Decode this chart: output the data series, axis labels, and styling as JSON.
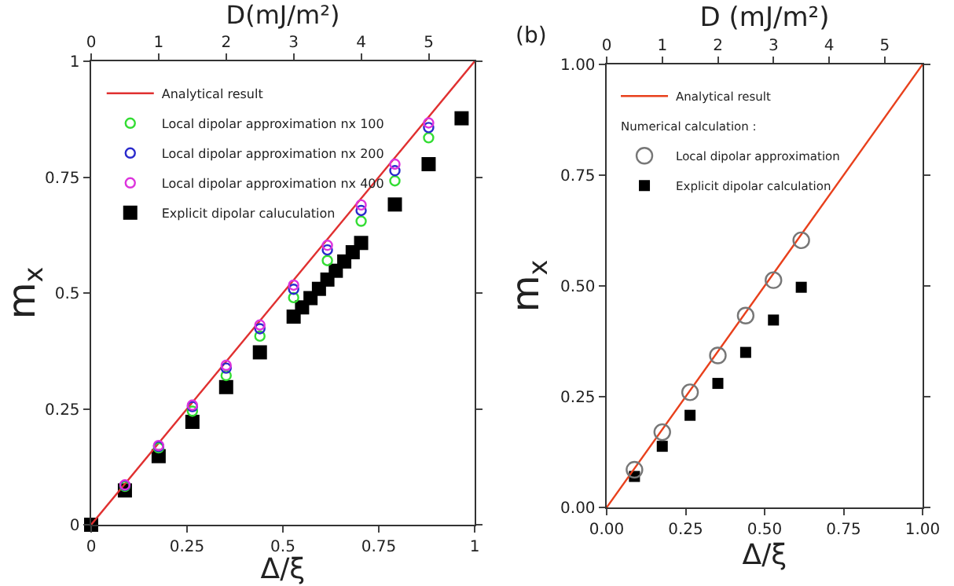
{
  "chart_data": [
    {
      "type": "scatter",
      "xlabel": "Δ/ξ",
      "ylabel": "m$_{x}$",
      "x2label": "D(mJ/m²)",
      "xlim": [
        0,
        1
      ],
      "ylim": [
        0,
        1
      ],
      "xticks": [
        0,
        0.25,
        0.5,
        0.75,
        1
      ],
      "yticks": [
        0,
        0.25,
        0.5,
        0.75,
        1
      ],
      "x2lim": [
        0,
        5.68
      ],
      "x2ticks": [
        0,
        1,
        2,
        3,
        4,
        5
      ],
      "grid": false,
      "legend": "top left",
      "series": [
        {
          "name": "Analytical result",
          "type": "line",
          "marker": "none",
          "line_style": "solid",
          "color": "#e03030",
          "x": [
            0,
            1
          ],
          "values": [
            0,
            1
          ]
        },
        {
          "name": "Local dipolar approximation nx 100",
          "marker": "circle",
          "color": "#33dd33",
          "x": [
            0.088,
            0.176,
            0.264,
            0.352,
            0.44,
            0.528,
            0.616,
            0.704,
            0.792,
            0.88
          ],
          "values": [
            0.083,
            0.166,
            0.245,
            0.322,
            0.407,
            0.49,
            0.57,
            0.655,
            0.742,
            0.835
          ]
        },
        {
          "name": "Local dipolar approximation nx 200",
          "marker": "circle",
          "color": "#2a2acc",
          "x": [
            0.088,
            0.176,
            0.264,
            0.352,
            0.44,
            0.528,
            0.616,
            0.704,
            0.792,
            0.88
          ],
          "values": [
            0.085,
            0.169,
            0.255,
            0.338,
            0.423,
            0.508,
            0.593,
            0.678,
            0.764,
            0.857
          ]
        },
        {
          "name": "Local dipolar approximation nx 400",
          "marker": "circle",
          "color": "#dd33dd",
          "x": [
            0.088,
            0.176,
            0.264,
            0.352,
            0.44,
            0.528,
            0.616,
            0.704,
            0.792,
            0.88
          ],
          "values": [
            0.086,
            0.171,
            0.258,
            0.344,
            0.431,
            0.517,
            0.603,
            0.69,
            0.778,
            0.867
          ]
        },
        {
          "name": "Explicit dipolar caluculation",
          "marker": "square",
          "color": "#000000",
          "x": [
            0,
            0.088,
            0.176,
            0.264,
            0.352,
            0.44,
            0.528,
            0.55,
            0.572,
            0.594,
            0.616,
            0.638,
            0.66,
            0.682,
            0.704,
            0.792,
            0.88,
            0.966
          ],
          "values": [
            0,
            0.074,
            0.148,
            0.222,
            0.297,
            0.372,
            0.449,
            0.469,
            0.489,
            0.509,
            0.529,
            0.548,
            0.568,
            0.588,
            0.608,
            0.691,
            0.778,
            0.877
          ]
        }
      ]
    },
    {
      "type": "scatter",
      "title": "(b)",
      "xlabel": "Δ/ξ",
      "ylabel": "m$_{x}$",
      "x2label": "D (mJ/m²)",
      "xlim": [
        0,
        1
      ],
      "ylim": [
        0,
        1
      ],
      "xticks": [
        {
          "value": 0,
          "label": "0.00"
        },
        {
          "value": 0.25,
          "label": "0.25"
        },
        {
          "value": 0.5,
          "label": "0.50"
        },
        {
          "value": 0.75,
          "label": "0.75"
        },
        {
          "value": 1,
          "label": "1.00"
        }
      ],
      "yticks": [
        {
          "value": 0,
          "label": "0.00"
        },
        {
          "value": 0.25,
          "label": "0.25"
        },
        {
          "value": 0.5,
          "label": "0.50"
        },
        {
          "value": 0.75,
          "label": "0.75"
        },
        {
          "value": 1,
          "label": "1.00"
        }
      ],
      "x2lim": [
        0,
        5.68
      ],
      "x2ticks": [
        0,
        1,
        2,
        3,
        4,
        5
      ],
      "grid": false,
      "legend": "top left",
      "annotations": [
        "Numerical calculation :"
      ],
      "series": [
        {
          "name": "Analytical result",
          "type": "line",
          "marker": "none",
          "line_style": "solid",
          "color": "#e8401c",
          "x": [
            0,
            1
          ],
          "values": [
            0,
            1
          ]
        },
        {
          "name": "Local dipolar approximation",
          "marker": "circle",
          "color": "#777777",
          "x": [
            0.088,
            0.176,
            0.264,
            0.352,
            0.44,
            0.528,
            0.616
          ],
          "values": [
            0.085,
            0.17,
            0.26,
            0.343,
            0.433,
            0.513,
            0.603
          ]
        },
        {
          "name": "Explicit dipolar calculation",
          "marker": "square",
          "color": "#000000",
          "x": [
            0.088,
            0.176,
            0.264,
            0.352,
            0.44,
            0.528,
            0.616
          ],
          "values": [
            0.07,
            0.138,
            0.208,
            0.28,
            0.35,
            0.423,
            0.497
          ]
        }
      ]
    }
  ]
}
